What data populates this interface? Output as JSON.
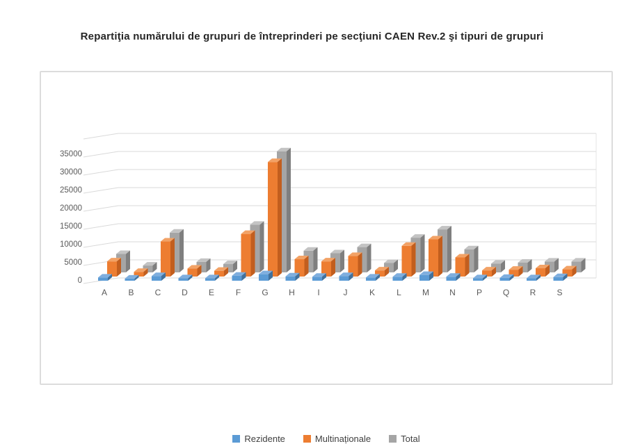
{
  "header": {
    "title": "Repartiţia numărului de grupuri de întreprinderi pe secţiuni CAEN Rev.2 şi tipuri de grupuri"
  },
  "chart_data": {
    "type": "bar",
    "subtype": "3d-column",
    "title": "Repartiţia numărului de grupuri de întreprinderi pe secţiuni CAEN Rev.2 şi tipuri de grupuri",
    "categories": [
      "A",
      "B",
      "C",
      "D",
      "E",
      "F",
      "G",
      "H",
      "I",
      "J",
      "K",
      "L",
      "M",
      "N",
      "P",
      "Q",
      "R",
      "S"
    ],
    "series": [
      {
        "name": "Rezidente",
        "color": "#5B9BD5",
        "color_top": "#7FAEDE",
        "color_side": "#41719C",
        "values": [
          900,
          600,
          1300,
          700,
          700,
          1400,
          1800,
          1200,
          1100,
          1300,
          900,
          1100,
          1600,
          1100,
          700,
          800,
          700,
          1000
        ]
      },
      {
        "name": "Multinaționale",
        "color": "#ED7D31",
        "color_top": "#F2A266",
        "color_side": "#C25E1E",
        "values": [
          4200,
          1300,
          9700,
          2200,
          1600,
          11800,
          31700,
          4800,
          4200,
          5700,
          1700,
          8500,
          10300,
          5300,
          1700,
          1900,
          2300,
          2000
        ]
      },
      {
        "name": "Total",
        "color": "#A5A5A5",
        "color_top": "#C3C3C3",
        "color_side": "#7F7F7F",
        "values": [
          5100,
          1900,
          11000,
          2900,
          2300,
          13200,
          33500,
          6000,
          5300,
          7000,
          2600,
          9600,
          11900,
          6400,
          2400,
          2700,
          3000,
          3000
        ]
      }
    ],
    "xlabel": "",
    "ylabel": "",
    "y_axis": {
      "min": 0,
      "max": 35000,
      "step": 5000,
      "ticks": [
        0,
        5000,
        10000,
        15000,
        20000,
        25000,
        30000,
        35000
      ]
    },
    "grid": true,
    "legend_position": "bottom",
    "axis_text_color": "#595959",
    "grid_color": "#D9D9D9"
  }
}
